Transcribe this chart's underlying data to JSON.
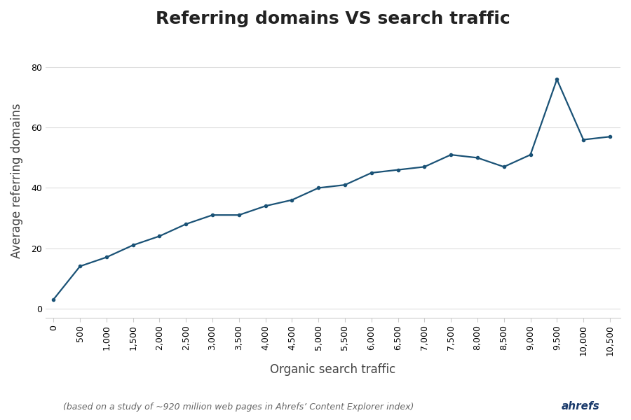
{
  "title": "Referring domains VS search traffic",
  "xlabel": "Organic search traffic",
  "ylabel": "Average referring domains",
  "footnote": "(based on a study of ~920 million web pages in Ahrefs’ Content Explorer index)",
  "ahrefs_label": "ahrefs",
  "x_data": [
    0,
    500,
    1000,
    1500,
    2000,
    2500,
    3000,
    3500,
    4000,
    4500,
    5000,
    5500,
    6000,
    6500,
    7000,
    7500,
    8000,
    8500,
    9000,
    9500,
    10000,
    10500
  ],
  "y_data": [
    3,
    14,
    17,
    21,
    24,
    28,
    31,
    31,
    34,
    36,
    40,
    41,
    45,
    46,
    47,
    51,
    50,
    47,
    51,
    76,
    56,
    57
  ],
  "line_color": "#1a5276",
  "background_color": "#ffffff",
  "xlim": [
    -150,
    10700
  ],
  "ylim": [
    -3,
    88
  ],
  "x_ticks": [
    0,
    500,
    1000,
    1500,
    2000,
    2500,
    3000,
    3500,
    4000,
    4500,
    5000,
    5500,
    6000,
    6500,
    7000,
    7500,
    8000,
    8500,
    9000,
    9500,
    10000,
    10500
  ],
  "y_ticks": [
    0,
    20,
    40,
    60,
    80
  ],
  "title_fontsize": 18,
  "label_fontsize": 12,
  "tick_fontsize": 9,
  "footnote_fontsize": 9,
  "line_width": 1.6
}
